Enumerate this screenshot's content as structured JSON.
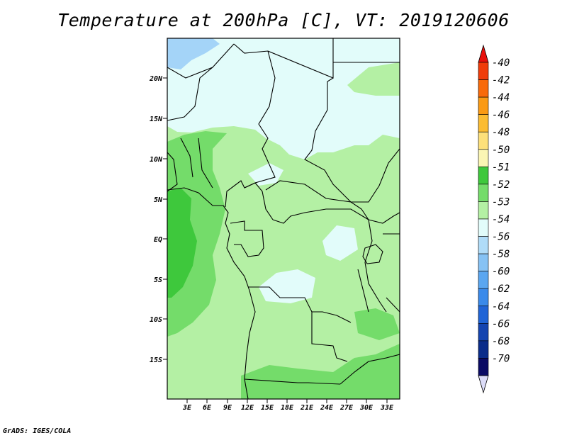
{
  "title": "Temperature at 200hPa [C], VT: 2019120606",
  "credit": "GrADS: IGES/COLA",
  "map": {
    "lat_labels": [
      "20N",
      "15N",
      "10N",
      "5N",
      "EQ",
      "5S",
      "10S",
      "15S"
    ],
    "lon_labels": [
      "3E",
      "6E",
      "9E",
      "12E",
      "15E",
      "18E",
      "21E",
      "24E",
      "27E",
      "30E",
      "33E"
    ]
  },
  "legend": {
    "levels": [
      "-40",
      "-42",
      "-44",
      "-46",
      "-48",
      "-50",
      "-51",
      "-52",
      "-53",
      "-54",
      "-56",
      "-58",
      "-60",
      "-62",
      "-64",
      "-66",
      "-68",
      "-70"
    ],
    "colors": [
      "#e8100c",
      "#f03c0a",
      "#f86a0a",
      "#fa9a14",
      "#fbbc32",
      "#fde07a",
      "#fbf6b4",
      "#3ec83c",
      "#74dc6a",
      "#b4f0a4",
      "#e2fcfa",
      "#b0dcf8",
      "#86c2f4",
      "#5aa6f0",
      "#3a8aea",
      "#2064d6",
      "#1444b0",
      "#0a2c8a",
      "#0a0a64",
      "#dcdcf8"
    ],
    "top_arrow_color": "#e8100c",
    "bottom_arrow_color": "#dcdcf8"
  },
  "field_colors": {
    "cold_sea": "#a4d4f8",
    "level_54": "#e2fcfa",
    "level_53": "#b4f0a4",
    "level_52": "#74dc6a",
    "level_51": "#3ec83c"
  }
}
